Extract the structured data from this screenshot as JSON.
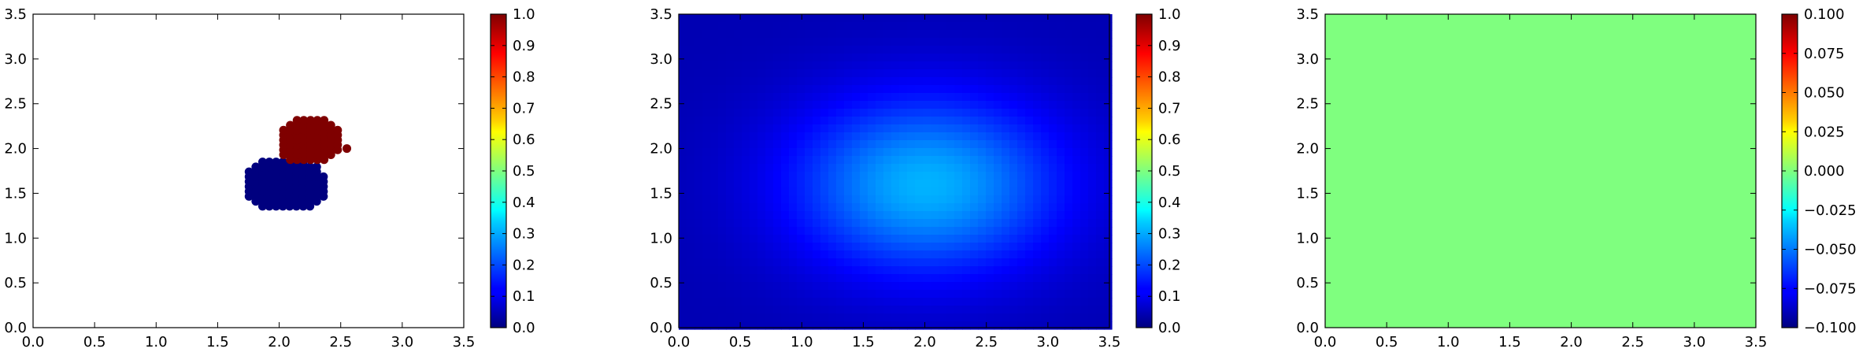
{
  "figure": {
    "background": "#ffffff"
  },
  "chart_data": [
    {
      "type": "scatter",
      "panel": "left",
      "colormap": "jet",
      "xlim": [
        0.0,
        3.5
      ],
      "ylim": [
        0.0,
        3.5
      ],
      "xticks": [
        "0.0",
        "0.5",
        "1.0",
        "1.5",
        "2.0",
        "2.5",
        "3.0",
        "3.5"
      ],
      "yticks": [
        "0.0",
        "0.5",
        "1.0",
        "1.5",
        "2.0",
        "2.5",
        "3.0",
        "3.5"
      ],
      "colorbar": {
        "min": 0.0,
        "max": 1.0,
        "ticks": [
          "0.0",
          "0.1",
          "0.2",
          "0.3",
          "0.4",
          "0.5",
          "0.6",
          "0.7",
          "0.8",
          "0.9",
          "1.0"
        ]
      },
      "series": [
        {
          "value": 0.0,
          "color": "#00007f",
          "cluster": {
            "center": [
              2.05,
              1.6
            ],
            "radii": [
              0.35,
              0.3
            ],
            "step": 0.055
          }
        },
        {
          "value": 1.0,
          "color": "#7f0000",
          "cluster": {
            "center": [
              2.25,
              2.08
            ],
            "radii": [
              0.27,
              0.26
            ],
            "step": 0.055
          }
        }
      ]
    },
    {
      "type": "heatmap",
      "panel": "middle",
      "colormap": "jet",
      "xlim": [
        0.0,
        3.5
      ],
      "ylim": [
        0.0,
        3.5
      ],
      "xticks": [
        "0.0",
        "0.5",
        "1.0",
        "1.5",
        "2.0",
        "2.5",
        "3.0",
        "3.5"
      ],
      "yticks": [
        "0.0",
        "0.5",
        "1.0",
        "1.5",
        "2.0",
        "2.5",
        "3.0",
        "3.5"
      ],
      "colorbar": {
        "min": 0.0,
        "max": 1.0,
        "ticks": [
          "0.0",
          "0.1",
          "0.2",
          "0.3",
          "0.4",
          "0.5",
          "0.6",
          "0.7",
          "0.8",
          "0.9",
          "1.0"
        ]
      },
      "field": {
        "min": 0.05,
        "max": 0.3,
        "peak_at": [
          2.0,
          1.6
        ]
      }
    },
    {
      "type": "heatmap",
      "panel": "right",
      "colormap": "jet",
      "xlim": [
        0.0,
        3.5
      ],
      "ylim": [
        0.0,
        3.5
      ],
      "xticks": [
        "0.0",
        "0.5",
        "1.0",
        "1.5",
        "2.0",
        "2.5",
        "3.0",
        "3.5"
      ],
      "yticks": [
        "0.0",
        "0.5",
        "1.0",
        "1.5",
        "2.0",
        "2.5",
        "3.0",
        "3.5"
      ],
      "colorbar": {
        "min": -0.1,
        "max": 0.1,
        "ticks": [
          "−0.100",
          "−0.075",
          "−0.050",
          "−0.025",
          "0.000",
          "0.025",
          "0.050",
          "0.075",
          "0.100"
        ]
      },
      "field": {
        "constant": 0.0,
        "color": "#7fff7f"
      }
    }
  ]
}
